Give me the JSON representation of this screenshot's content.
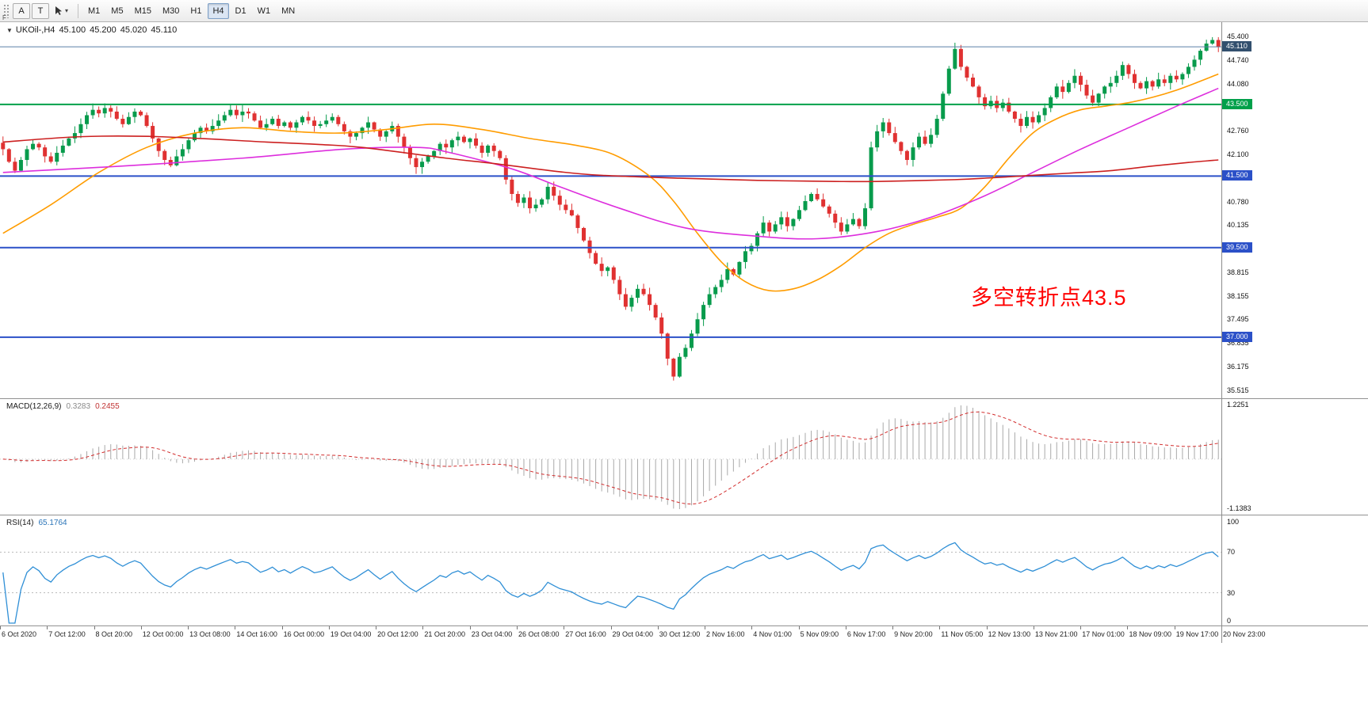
{
  "toolbar": {
    "f_label": "F",
    "tools": [
      {
        "id": "annotation-tool",
        "label": "A"
      },
      {
        "id": "text-tool",
        "label": "T"
      }
    ],
    "timeframes": [
      "M1",
      "M5",
      "M15",
      "M30",
      "H1",
      "H4",
      "D1",
      "W1",
      "MN"
    ],
    "active_timeframe": "H4"
  },
  "icons": {
    "caret_down": "▾",
    "collapse_triangle": "▼"
  },
  "chart": {
    "title": "UKOil-,H4",
    "open": "45.100",
    "high": "45.200",
    "low": "45.020",
    "close": "45.110"
  },
  "annotation": {
    "text": "多空转折点43.5",
    "color": "#ff0000"
  },
  "price_axis": {
    "ticks": [
      "45.400",
      "44.740",
      "44.080",
      "42.760",
      "42.100",
      "40.780",
      "40.135",
      "38.815",
      "38.155",
      "37.495",
      "36.835",
      "36.175",
      "35.515"
    ],
    "current": {
      "label": "45.110",
      "price": 45.11,
      "line_color": "#5b7fa6",
      "box_color": "#33506e"
    },
    "hlines": [
      {
        "label": "43.500",
        "price": 43.5,
        "color": "#00a04a"
      },
      {
        "label": "41.500",
        "price": 41.5,
        "color": "#2b50c8"
      },
      {
        "label": "39.500",
        "price": 39.5,
        "color": "#2b50c8"
      },
      {
        "label": "37.000",
        "price": 37.0,
        "color": "#2b50c8"
      }
    ]
  },
  "chart_data": {
    "type": "candlestick",
    "symbol": "UKOil-",
    "timeframe": "H4",
    "ylim": [
      35.515,
      45.4
    ],
    "up_color": "#089b4c",
    "down_color": "#e03131",
    "closes": [
      42.25,
      41.9,
      41.65,
      41.95,
      42.25,
      42.4,
      42.3,
      42.05,
      41.9,
      42.15,
      42.35,
      42.55,
      42.7,
      42.95,
      43.2,
      43.35,
      43.25,
      43.4,
      43.3,
      43.1,
      42.95,
      43.15,
      43.3,
      43.2,
      42.9,
      42.55,
      42.2,
      41.95,
      41.8,
      42.05,
      42.25,
      42.5,
      42.7,
      42.85,
      42.75,
      42.9,
      43.05,
      43.2,
      43.35,
      43.2,
      43.3,
      43.25,
      43.05,
      42.85,
      42.95,
      43.1,
      42.9,
      43.0,
      42.85,
      43.0,
      43.15,
      43.05,
      42.9,
      42.95,
      43.05,
      43.15,
      42.95,
      42.75,
      42.6,
      42.7,
      42.85,
      43.0,
      42.8,
      42.6,
      42.75,
      42.9,
      42.6,
      42.3,
      42.0,
      41.75,
      41.9,
      42.05,
      42.2,
      42.4,
      42.3,
      42.5,
      42.6,
      42.45,
      42.55,
      42.35,
      42.15,
      42.35,
      42.2,
      42.0,
      41.4,
      41.0,
      40.75,
      40.9,
      40.6,
      40.7,
      40.85,
      41.2,
      40.95,
      40.7,
      40.55,
      40.4,
      40.05,
      39.7,
      39.35,
      39.05,
      38.85,
      38.95,
      38.6,
      38.2,
      37.85,
      38.1,
      38.35,
      38.2,
      37.9,
      37.55,
      37.1,
      36.4,
      35.9,
      36.45,
      36.7,
      37.1,
      37.5,
      37.9,
      38.2,
      38.4,
      38.6,
      38.9,
      38.75,
      39.1,
      39.4,
      39.55,
      39.9,
      40.2,
      39.95,
      40.15,
      40.35,
      40.1,
      40.3,
      40.55,
      40.8,
      41.0,
      40.85,
      40.65,
      40.45,
      40.2,
      39.95,
      40.15,
      40.3,
      40.1,
      40.6,
      42.3,
      42.75,
      43.0,
      42.7,
      42.45,
      42.2,
      41.95,
      42.3,
      42.6,
      42.4,
      42.65,
      43.1,
      43.8,
      44.5,
      45.05,
      44.55,
      44.25,
      44.0,
      43.7,
      43.45,
      43.6,
      43.4,
      43.55,
      43.3,
      43.1,
      42.9,
      43.15,
      43.0,
      43.2,
      43.4,
      43.7,
      44.0,
      43.85,
      44.1,
      44.3,
      44.05,
      43.75,
      43.55,
      43.8,
      44.0,
      44.1,
      44.3,
      44.6,
      44.35,
      44.1,
      43.95,
      44.15,
      44.0,
      44.2,
      44.1,
      44.3,
      44.2,
      44.35,
      44.55,
      44.75,
      45.0,
      45.2,
      45.3,
      45.11
    ],
    "moving_averages": [
      {
        "name": "fast-orange",
        "color": "#ff9c00",
        "anchors": [
          [
            0,
            39.9
          ],
          [
            8,
            40.7
          ],
          [
            16,
            41.6
          ],
          [
            24,
            42.3
          ],
          [
            32,
            42.7
          ],
          [
            40,
            42.85
          ],
          [
            48,
            42.75
          ],
          [
            56,
            42.7
          ],
          [
            64,
            42.8
          ],
          [
            72,
            42.95
          ],
          [
            80,
            42.8
          ],
          [
            88,
            42.55
          ],
          [
            96,
            42.35
          ],
          [
            102,
            42.1
          ],
          [
            108,
            41.5
          ],
          [
            112,
            40.8
          ],
          [
            116,
            39.9
          ],
          [
            120,
            39.1
          ],
          [
            124,
            38.55
          ],
          [
            128,
            38.3
          ],
          [
            132,
            38.35
          ],
          [
            136,
            38.6
          ],
          [
            140,
            39.0
          ],
          [
            144,
            39.5
          ],
          [
            148,
            39.9
          ],
          [
            152,
            40.15
          ],
          [
            156,
            40.35
          ],
          [
            160,
            40.6
          ],
          [
            164,
            41.2
          ],
          [
            168,
            42.0
          ],
          [
            172,
            42.7
          ],
          [
            176,
            43.1
          ],
          [
            180,
            43.35
          ],
          [
            184,
            43.45
          ],
          [
            188,
            43.55
          ],
          [
            192,
            43.7
          ],
          [
            196,
            43.9
          ],
          [
            200,
            44.15
          ],
          [
            203,
            44.35
          ]
        ]
      },
      {
        "name": "mid-magenta",
        "color": "#dd2edd",
        "anchors": [
          [
            0,
            41.6
          ],
          [
            20,
            41.78
          ],
          [
            40,
            42.0
          ],
          [
            57,
            42.25
          ],
          [
            69,
            42.3
          ],
          [
            74,
            42.18
          ],
          [
            85,
            41.7
          ],
          [
            93,
            41.2
          ],
          [
            103,
            40.6
          ],
          [
            114,
            40.05
          ],
          [
            126,
            39.82
          ],
          [
            136,
            39.75
          ],
          [
            146,
            39.95
          ],
          [
            155,
            40.35
          ],
          [
            164,
            40.95
          ],
          [
            172,
            41.6
          ],
          [
            180,
            42.25
          ],
          [
            188,
            42.85
          ],
          [
            196,
            43.45
          ],
          [
            203,
            43.95
          ]
        ]
      },
      {
        "name": "slow-red",
        "color": "#cc2020",
        "anchors": [
          [
            0,
            42.45
          ],
          [
            13,
            42.6
          ],
          [
            26,
            42.6
          ],
          [
            44,
            42.45
          ],
          [
            53,
            42.38
          ],
          [
            60,
            42.3
          ],
          [
            74,
            42.0
          ],
          [
            82,
            41.85
          ],
          [
            93,
            41.62
          ],
          [
            100,
            41.52
          ],
          [
            113,
            41.44
          ],
          [
            126,
            41.38
          ],
          [
            139,
            41.35
          ],
          [
            146,
            41.35
          ],
          [
            159,
            41.4
          ],
          [
            165,
            41.45
          ],
          [
            172,
            41.52
          ],
          [
            178,
            41.58
          ],
          [
            185,
            41.65
          ],
          [
            192,
            41.78
          ],
          [
            198,
            41.88
          ],
          [
            203,
            41.95
          ]
        ]
      }
    ],
    "macd": {
      "label": "MACD(12,26,9)",
      "value_main": "0.3283",
      "value_signal": "0.2455",
      "fast": 12,
      "slow": 26,
      "signal": 9,
      "axis_max": "1.2251",
      "axis_min": "-1.1383",
      "hist_color": "#a9a9a9",
      "signal_color": "#d22c2c"
    },
    "rsi": {
      "label": "RSI(14)",
      "value": "65.1764",
      "period": 14,
      "levels": [
        100,
        70,
        30,
        0
      ],
      "line_color": "#2f8fd6"
    },
    "x_labels": [
      "6 Oct 2020",
      "7 Oct 12:00",
      "8 Oct 20:00",
      "12 Oct 00:00",
      "13 Oct 08:00",
      "14 Oct 16:00",
      "16 Oct 00:00",
      "19 Oct 04:00",
      "20 Oct 12:00",
      "21 Oct 20:00",
      "23 Oct 04:00",
      "26 Oct 08:00",
      "27 Oct 16:00",
      "29 Oct 04:00",
      "30 Oct 12:00",
      "2 Nov 16:00",
      "4 Nov 01:00",
      "5 Nov 09:00",
      "6 Nov 17:00",
      "9 Nov 20:00",
      "11 Nov 05:00",
      "12 Nov 13:00",
      "13 Nov 21:00",
      "17 Nov 01:00",
      "18 Nov 09:00",
      "19 Nov 17:00",
      "20 Nov 23:00"
    ]
  }
}
